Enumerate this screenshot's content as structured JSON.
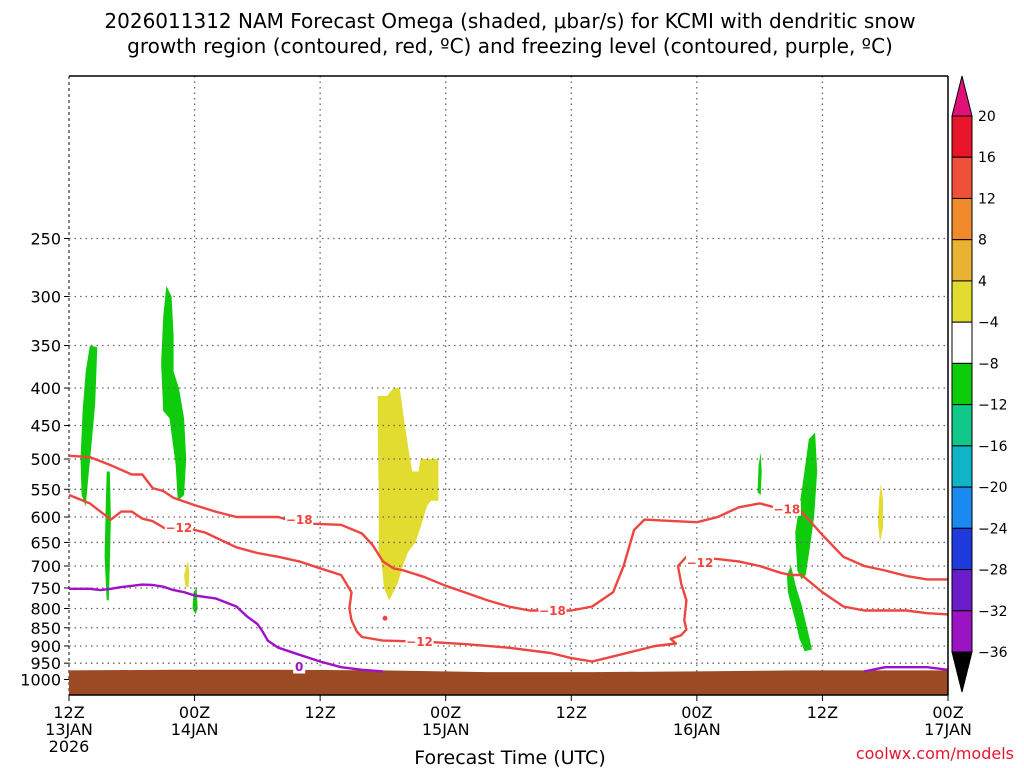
{
  "chart_data": {
    "type": "heatmap",
    "title_lines": [
      "2026011312 NAM Forecast Omega (shaded, μbar/s) for KCMI with dendritic snow",
      "growth region (contoured, red, ºC) and freezing level (contoured, purple, ºC)"
    ],
    "xlabel": "Forecast Time (UTC)",
    "ylabel": "",
    "credit": "coolwx.com/models",
    "xlim": [
      0,
      84
    ],
    "ylim": [
      1050,
      150
    ],
    "y_scale": "log",
    "grid": true,
    "x_ticks": [
      {
        "hour": 0,
        "lines": [
          "12Z",
          "13JAN",
          "2026"
        ]
      },
      {
        "hour": 12,
        "lines": [
          "00Z",
          "14JAN"
        ]
      },
      {
        "hour": 24,
        "lines": [
          "12Z"
        ]
      },
      {
        "hour": 36,
        "lines": [
          "00Z",
          "15JAN"
        ]
      },
      {
        "hour": 48,
        "lines": [
          "12Z"
        ]
      },
      {
        "hour": 60,
        "lines": [
          "00Z",
          "16JAN"
        ]
      },
      {
        "hour": 72,
        "lines": [
          "12Z"
        ]
      },
      {
        "hour": 84,
        "lines": [
          "00Z",
          "17JAN"
        ]
      }
    ],
    "y_ticks": [
      250,
      300,
      350,
      400,
      450,
      500,
      550,
      600,
      650,
      700,
      750,
      800,
      850,
      900,
      950,
      1000
    ],
    "colorbar": {
      "labels": [
        "20",
        "16",
        "12",
        "8",
        "4",
        "−4",
        "−8",
        "−12",
        "−16",
        "−20",
        "−24",
        "−28",
        "−32",
        "−36"
      ],
      "colors": [
        "#e8152d",
        "#f0503a",
        "#f08a2c",
        "#e9b232",
        "#e2dc30",
        "#ffffff",
        "#0ecb0c",
        "#10c888",
        "#10b4c8",
        "#1a8af0",
        "#1e3adc",
        "#6a1cc8",
        "#9a14c4",
        "#aaaaaa"
      ],
      "top_arrow_color": "#e0127a",
      "bottom_arrow_color": "#000000"
    },
    "ground": {
      "color": "#9c4a24",
      "surface_p": 975
    },
    "omega_regions": [
      {
        "color": "#0ecb0c",
        "points": [
          [
            1.2,
            560
          ],
          [
            1.1,
            500
          ],
          [
            1.3,
            430
          ],
          [
            1.6,
            380
          ],
          [
            2.0,
            350
          ],
          [
            2.7,
            352
          ],
          [
            2.5,
            420
          ],
          [
            2.2,
            470
          ],
          [
            1.9,
            520
          ],
          [
            1.6,
            580
          ]
        ]
      },
      {
        "color": "#0ecb0c",
        "points": [
          [
            3.6,
            780
          ],
          [
            3.4,
            680
          ],
          [
            3.5,
            590
          ],
          [
            3.6,
            520
          ],
          [
            3.9,
            520
          ],
          [
            4.0,
            600
          ],
          [
            3.9,
            700
          ],
          [
            3.8,
            780
          ]
        ]
      },
      {
        "color": "#0ecb0c",
        "points": [
          [
            9.0,
            430
          ],
          [
            8.8,
            370
          ],
          [
            9.0,
            320
          ],
          [
            9.3,
            290
          ],
          [
            9.8,
            300
          ],
          [
            10.0,
            340
          ],
          [
            10.0,
            380
          ],
          [
            10.5,
            400
          ],
          [
            11.0,
            440
          ],
          [
            11.2,
            500
          ],
          [
            11.0,
            560
          ],
          [
            10.4,
            570
          ],
          [
            10.2,
            510
          ],
          [
            9.6,
            440
          ]
        ]
      },
      {
        "color": "#0ecb0c",
        "points": [
          [
            11.8,
            800
          ],
          [
            11.9,
            760
          ],
          [
            12.2,
            750
          ],
          [
            12.3,
            800
          ],
          [
            12.1,
            815
          ]
        ]
      },
      {
        "color": "#0ecb0c",
        "points": [
          [
            65.8,
            555
          ],
          [
            65.9,
            510
          ],
          [
            66.1,
            490
          ],
          [
            66.2,
            520
          ],
          [
            66.1,
            560
          ]
        ]
      },
      {
        "color": "#0ecb0c",
        "points": [
          [
            69.6,
            710
          ],
          [
            69.4,
            630
          ],
          [
            69.8,
            580
          ],
          [
            70.2,
            530
          ],
          [
            70.7,
            470
          ],
          [
            71.3,
            460
          ],
          [
            71.5,
            520
          ],
          [
            71.2,
            600
          ],
          [
            70.8,
            660
          ],
          [
            70.4,
            720
          ],
          [
            70.0,
            730
          ]
        ]
      },
      {
        "color": "#0ecb0c",
        "points": [
          [
            68.7,
            760
          ],
          [
            68.6,
            720
          ],
          [
            69.0,
            700
          ],
          [
            69.5,
            750
          ],
          [
            70.0,
            790
          ],
          [
            70.7,
            870
          ],
          [
            71.0,
            910
          ],
          [
            70.3,
            915
          ],
          [
            69.8,
            880
          ],
          [
            69.4,
            830
          ],
          [
            69.0,
            790
          ]
        ]
      },
      {
        "color": "#e2dc30",
        "points": [
          [
            11.1,
            745
          ],
          [
            11.0,
            720
          ],
          [
            11.2,
            700
          ],
          [
            11.4,
            690
          ],
          [
            11.5,
            720
          ],
          [
            11.4,
            750
          ]
        ]
      },
      {
        "color": "#e2dc30",
        "points": [
          [
            29.6,
            670
          ],
          [
            29.6,
            560
          ],
          [
            29.5,
            460
          ],
          [
            29.5,
            410
          ],
          [
            30.4,
            410
          ],
          [
            31.0,
            400
          ],
          [
            31.6,
            400
          ],
          [
            32.0,
            440
          ],
          [
            32.4,
            480
          ],
          [
            32.8,
            520
          ],
          [
            33.4,
            520
          ],
          [
            33.6,
            500
          ],
          [
            35.3,
            500
          ],
          [
            35.3,
            570
          ],
          [
            34.6,
            570
          ],
          [
            34.2,
            580
          ],
          [
            33.9,
            600
          ],
          [
            33.6,
            620
          ],
          [
            33.1,
            650
          ],
          [
            32.4,
            670
          ],
          [
            31.9,
            700
          ],
          [
            31.4,
            740
          ],
          [
            30.6,
            780
          ],
          [
            30.1,
            750
          ],
          [
            29.9,
            700
          ]
        ]
      },
      {
        "color": "#e2dc30",
        "points": [
          [
            77.4,
            570
          ],
          [
            77.3,
            610
          ],
          [
            77.5,
            650
          ],
          [
            77.8,
            620
          ],
          [
            77.8,
            570
          ],
          [
            77.6,
            540
          ]
        ]
      }
    ],
    "temperature_contours": [
      {
        "label": "−18",
        "color": "#ee4540",
        "points": [
          [
            0,
            495
          ],
          [
            2,
            497
          ],
          [
            4,
            510
          ],
          [
            6,
            525
          ],
          [
            7,
            525
          ],
          [
            8,
            548
          ],
          [
            9,
            553
          ],
          [
            10,
            565
          ],
          [
            12,
            578
          ],
          [
            14,
            590
          ],
          [
            16,
            600
          ],
          [
            18,
            600
          ],
          [
            20,
            600
          ],
          [
            22,
            612
          ],
          [
            26,
            615
          ],
          [
            28,
            632
          ],
          [
            29,
            655
          ],
          [
            30,
            690
          ],
          [
            31,
            705
          ],
          [
            32,
            710
          ],
          [
            34,
            725
          ],
          [
            36,
            745
          ],
          [
            38,
            762
          ],
          [
            40,
            780
          ],
          [
            42,
            795
          ],
          [
            44,
            805
          ],
          [
            48,
            805
          ],
          [
            50,
            795
          ],
          [
            52,
            760
          ],
          [
            53,
            700
          ],
          [
            54,
            625
          ],
          [
            55,
            605
          ],
          [
            57,
            607
          ],
          [
            60,
            610
          ],
          [
            62,
            600
          ],
          [
            64,
            582
          ],
          [
            66,
            575
          ],
          [
            68,
            585
          ],
          [
            70,
            590
          ],
          [
            72,
            635
          ],
          [
            74,
            680
          ],
          [
            76,
            700
          ],
          [
            78,
            710
          ],
          [
            80,
            722
          ],
          [
            82,
            730
          ],
          [
            84,
            730
          ]
        ]
      },
      {
        "label": "−12",
        "color": "#ee4540",
        "points": [
          [
            0,
            560
          ],
          [
            2,
            575
          ],
          [
            3,
            590
          ],
          [
            4,
            605
          ],
          [
            5,
            590
          ],
          [
            6,
            590
          ],
          [
            7,
            603
          ],
          [
            8,
            608
          ],
          [
            9,
            620
          ],
          [
            10,
            630
          ],
          [
            11,
            620
          ],
          [
            12,
            625
          ],
          [
            13,
            630
          ],
          [
            16,
            660
          ],
          [
            18,
            672
          ],
          [
            20,
            680
          ],
          [
            22,
            690
          ],
          [
            24,
            705
          ],
          [
            26,
            720
          ],
          [
            27,
            760
          ],
          [
            26.8,
            800
          ],
          [
            27,
            830
          ],
          [
            27.5,
            860
          ],
          [
            28,
            875
          ],
          [
            30,
            885
          ],
          [
            34,
            888
          ],
          [
            38,
            895
          ],
          [
            42,
            905
          ],
          [
            46,
            920
          ],
          [
            48,
            935
          ],
          [
            50,
            945
          ],
          [
            52,
            930
          ],
          [
            54,
            915
          ],
          [
            56,
            900
          ],
          [
            58,
            893
          ],
          [
            57.5,
            880
          ],
          [
            58.5,
            870
          ],
          [
            59,
            855
          ],
          [
            58.8,
            830
          ],
          [
            59,
            780
          ],
          [
            58.5,
            740
          ],
          [
            58.2,
            700
          ],
          [
            59,
            680
          ],
          [
            62,
            685
          ],
          [
            64,
            690
          ],
          [
            66,
            700
          ],
          [
            68,
            715
          ],
          [
            69,
            720
          ],
          [
            70,
            720
          ],
          [
            72,
            760
          ],
          [
            74,
            795
          ],
          [
            76,
            805
          ],
          [
            78,
            805
          ],
          [
            80,
            805
          ],
          [
            82,
            812
          ],
          [
            84,
            815
          ]
        ]
      },
      {
        "label": "0",
        "color": "#a010c8",
        "points": [
          [
            0,
            752
          ],
          [
            2,
            752
          ],
          [
            3,
            755
          ],
          [
            4,
            752
          ],
          [
            5,
            748
          ],
          [
            7,
            742
          ],
          [
            8,
            743
          ],
          [
            9,
            747
          ],
          [
            10,
            755
          ],
          [
            11,
            760
          ],
          [
            12,
            768
          ],
          [
            14,
            775
          ],
          [
            16,
            795
          ],
          [
            17,
            820
          ],
          [
            18,
            840
          ],
          [
            18.5,
            860
          ],
          [
            19,
            885
          ],
          [
            20,
            905
          ],
          [
            22,
            925
          ],
          [
            24,
            945
          ],
          [
            26,
            962
          ],
          [
            28,
            970
          ],
          [
            30,
            975
          ]
        ]
      },
      {
        "label": "",
        "color": "#a010c8",
        "points": [
          [
            76,
            975
          ],
          [
            78,
            962
          ],
          [
            80,
            962
          ],
          [
            82,
            962
          ],
          [
            84,
            970
          ]
        ]
      }
    ],
    "contour_labels": [
      {
        "text": "−18",
        "color": "#ee4540",
        "hour": 22,
        "p": 605
      },
      {
        "text": "−12",
        "color": "#ee4540",
        "hour": 10.5,
        "p": 620
      },
      {
        "text": "−18",
        "color": "#ee4540",
        "hour": 46.2,
        "p": 805
      },
      {
        "text": "−12",
        "color": "#ee4540",
        "hour": 33.5,
        "p": 888
      },
      {
        "text": "−12",
        "color": "#ee4540",
        "hour": 60.3,
        "p": 692
      },
      {
        "text": "−18",
        "color": "#ee4540",
        "hour": 68.6,
        "p": 585
      },
      {
        "text": "0",
        "color": "#a010c8",
        "hour": 22,
        "p": 960
      }
    ],
    "red_dot": {
      "hour": 30.2,
      "p": 825,
      "color": "#ee4540"
    }
  }
}
